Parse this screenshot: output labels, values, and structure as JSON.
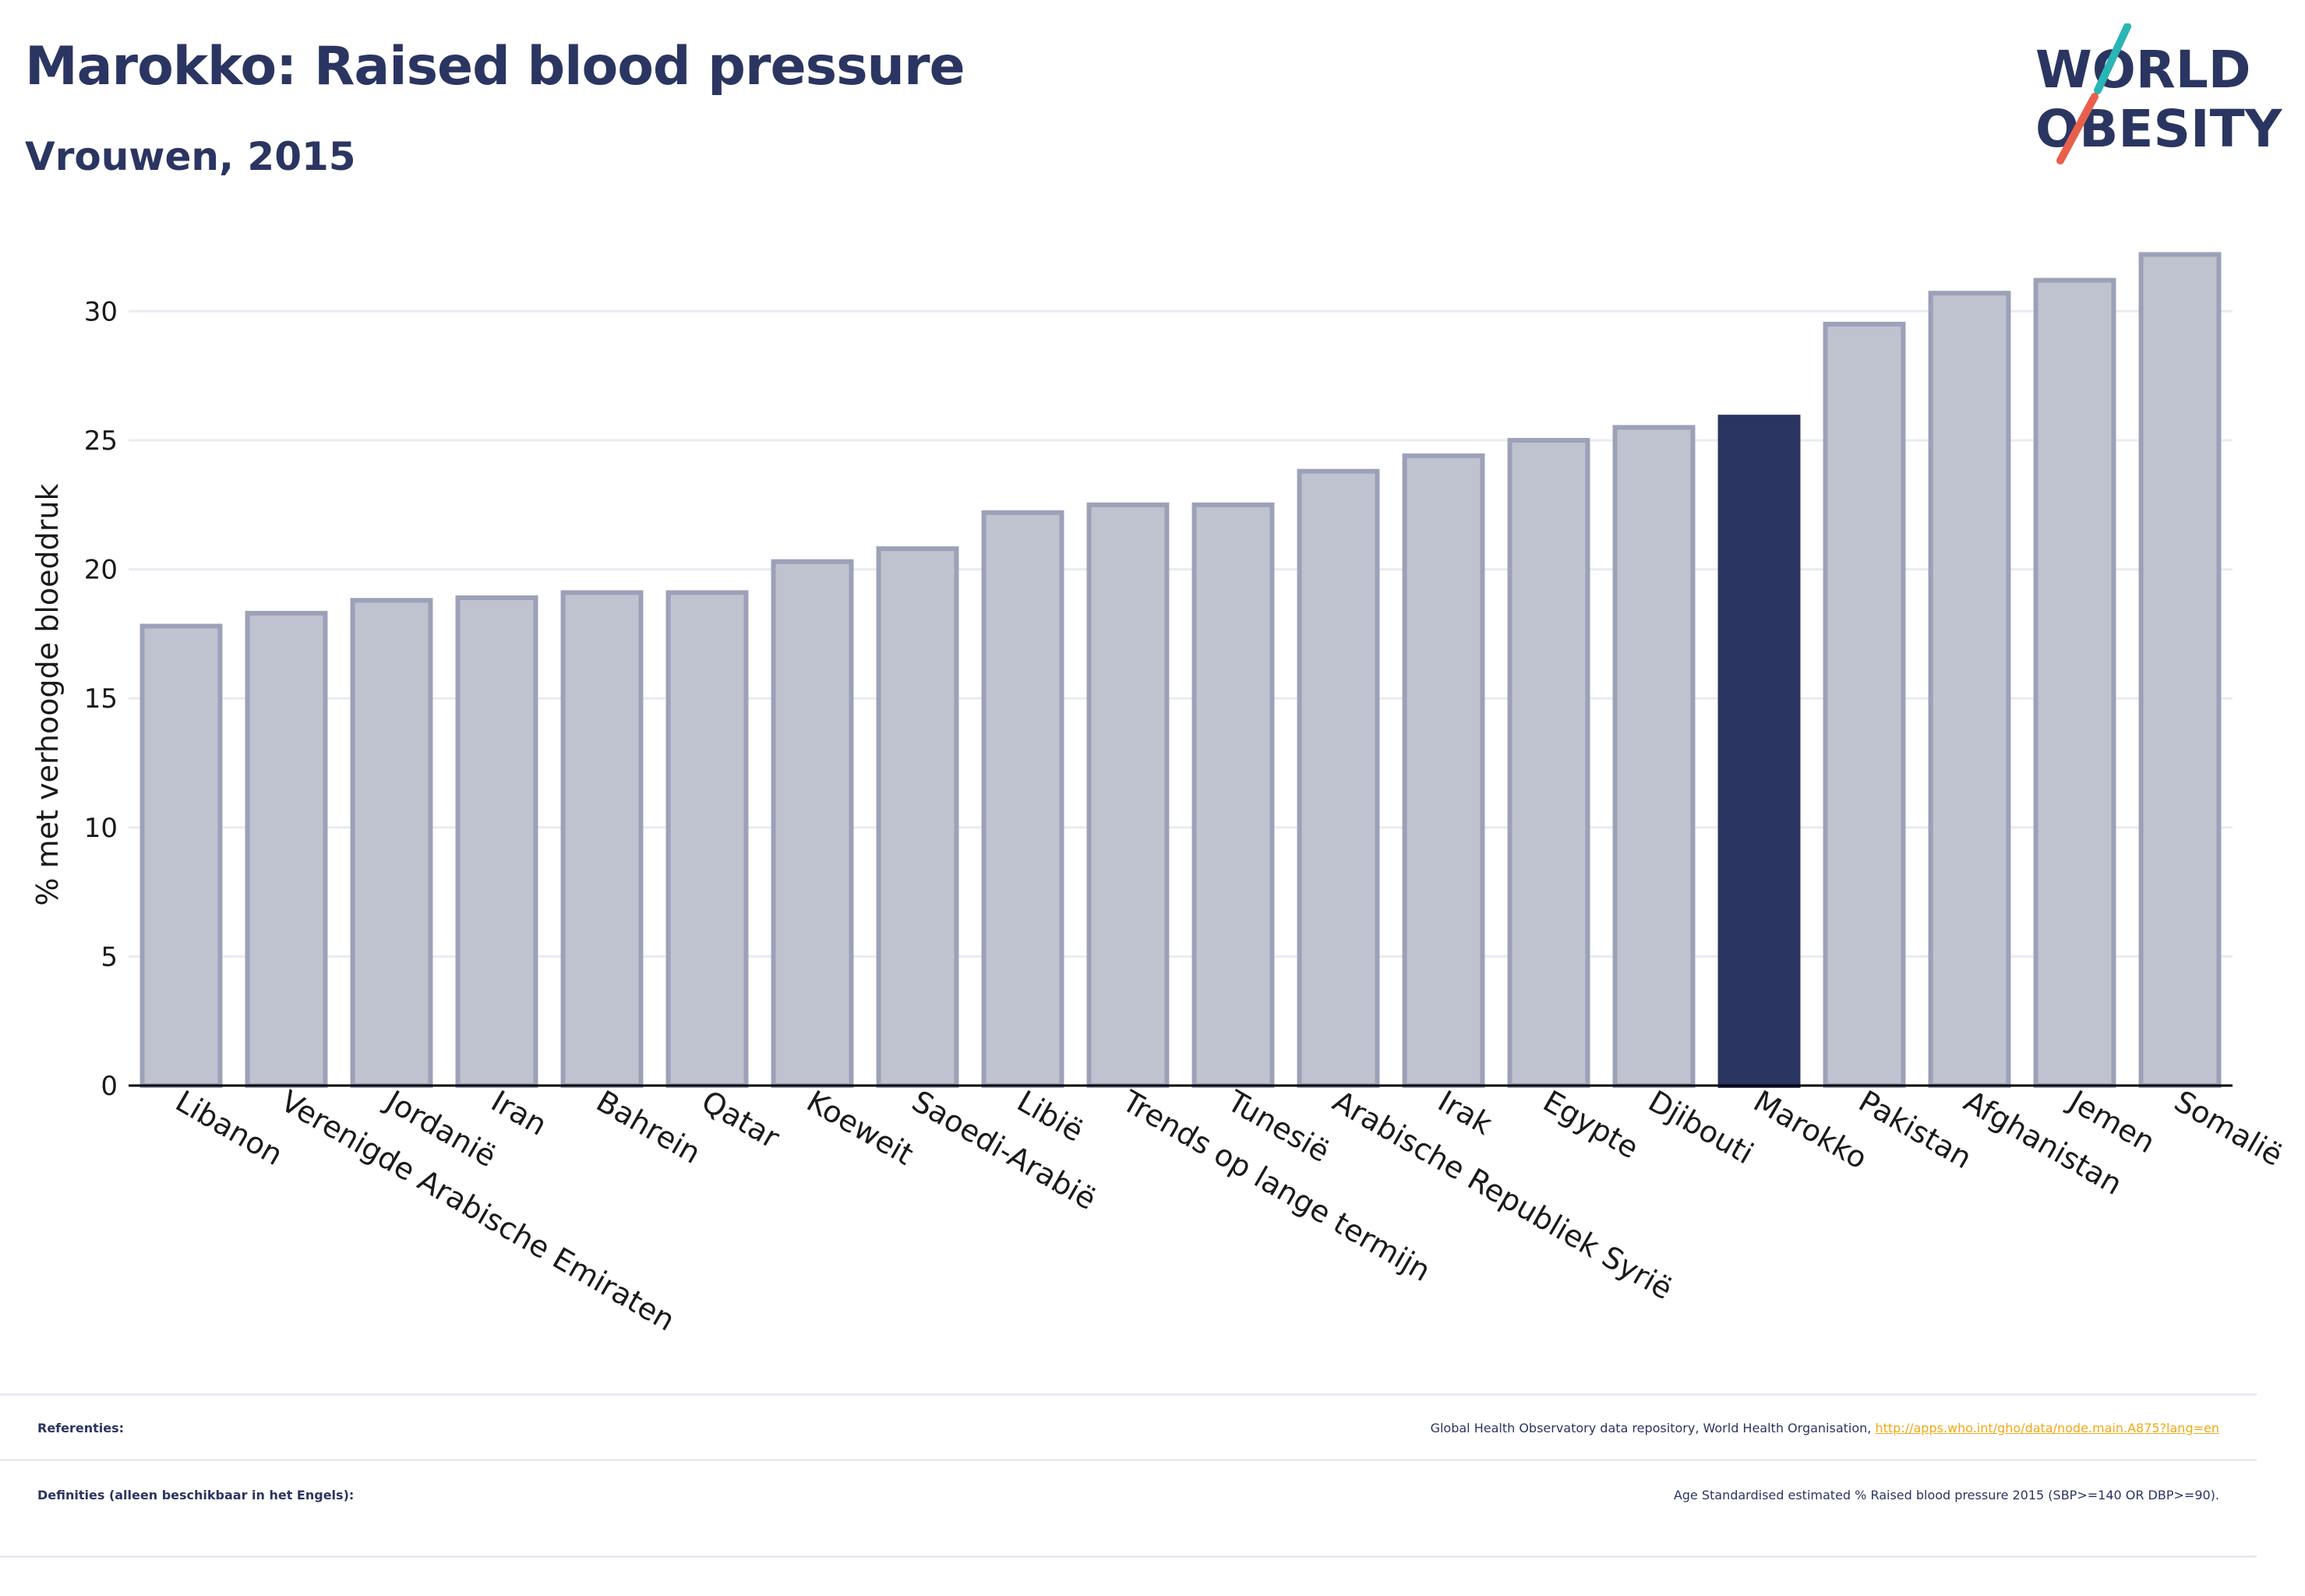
{
  "title": "Marokko: Raised blood pressure",
  "subtitle": "Vrouwen, 2015",
  "logo": {
    "line1": "WORLD",
    "line2": "OBESITY",
    "slash_colors": [
      "#2bb5b5",
      "#e8604c"
    ]
  },
  "colors": {
    "bar": "#bfc2cf",
    "bar_edge": "#9ca1b8",
    "highlight": "#2b3561",
    "grid": "#e8ebf2",
    "axis": "#000000"
  },
  "chart_data": {
    "type": "bar",
    "ylabel": "% met verhoogde bloeddruk",
    "xlabel": "",
    "ylim": [
      0,
      33
    ],
    "yticks": [
      0,
      5,
      10,
      15,
      20,
      25,
      30
    ],
    "grid": true,
    "highlight": "Marokko",
    "categories": [
      "Libanon",
      "Verenigde Arabische Emiraten",
      "Jordanië",
      "Iran",
      "Bahrein",
      "Qatar",
      "Koeweit",
      "Saoedi-Arabië",
      "Libië",
      "Trends op lange termijn",
      "Tunesië",
      "Arabische Republiek Syrië",
      "Irak",
      "Egypte",
      "Djibouti",
      "Marokko",
      "Pakistan",
      "Afghanistan",
      "Jemen",
      "Somalië"
    ],
    "values": [
      17.8,
      18.3,
      18.8,
      18.9,
      19.1,
      19.1,
      20.3,
      20.8,
      22.2,
      22.5,
      22.5,
      23.8,
      24.4,
      25.0,
      25.5,
      25.9,
      29.5,
      30.7,
      31.2,
      32.2
    ]
  },
  "footer": {
    "references_label": "Referenties:",
    "references_text": "Global Health Observatory data repository, World Health Organisation,",
    "references_link": "http://apps.who.int/gho/data/node.main.A875?lang=en",
    "definitions_label": "Definities (alleen beschikbaar in het Engels):",
    "definitions_text": "Age Standardised estimated % Raised blood pressure 2015 (SBP>=140 OR DBP>=90)."
  }
}
